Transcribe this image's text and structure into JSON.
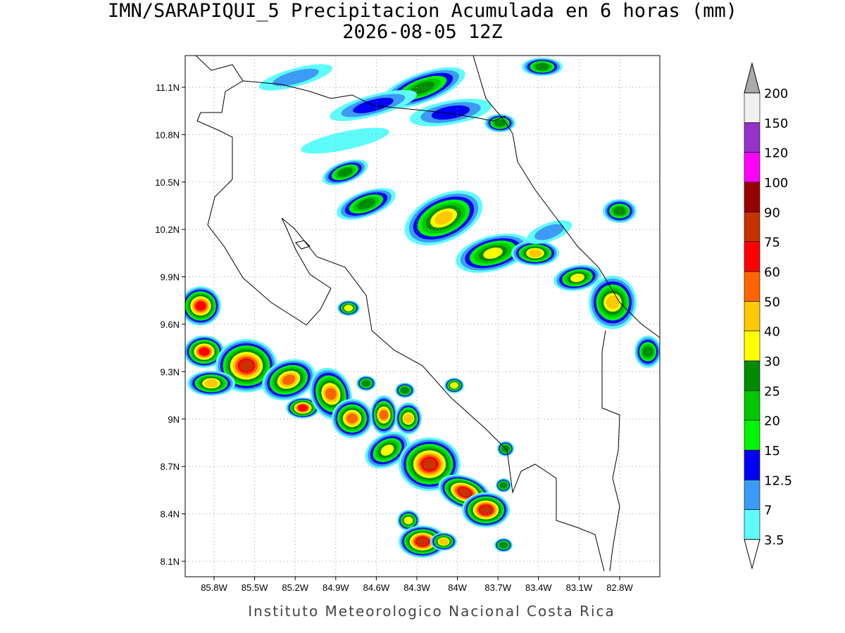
{
  "header": {
    "title": "IMN/SARAPIQUI_5 Precipitacion Acumulada en 6 horas (mm)",
    "subtitle": "2026-08-05 12Z"
  },
  "map": {
    "lon_labels": [
      "85.8W",
      "85.5W",
      "85.2W",
      "84.9W",
      "84.6W",
      "84.3W",
      "84W",
      "83.7W",
      "83.4W",
      "83.1W",
      "82.8W"
    ],
    "lat_labels": [
      "11.1N",
      "10.8N",
      "10.5N",
      "10.2N",
      "9.9N",
      "9.6N",
      "9.3N",
      "9N",
      "8.7N",
      "8.4N",
      "8.1N"
    ]
  },
  "colorbar": {
    "levels": [
      "3.5",
      "7",
      "12.5",
      "15",
      "20",
      "25",
      "30",
      "40",
      "50",
      "60",
      "75",
      "90",
      "100",
      "120",
      "150",
      "200"
    ],
    "colors": [
      "#5ffcfc",
      "#3b9bf5",
      "#0000f5",
      "#00f500",
      "#00c800",
      "#008c00",
      "#ffff00",
      "#ffc800",
      "#ff6400",
      "#ff0000",
      "#c83200",
      "#960000",
      "#ff00ff",
      "#9632c8",
      "#f0f0f0"
    ],
    "under_color": "#ffffff",
    "over_color": "#aaaaaa"
  },
  "footer": "Instituto Meteorologico Nacional Costa Rica"
}
